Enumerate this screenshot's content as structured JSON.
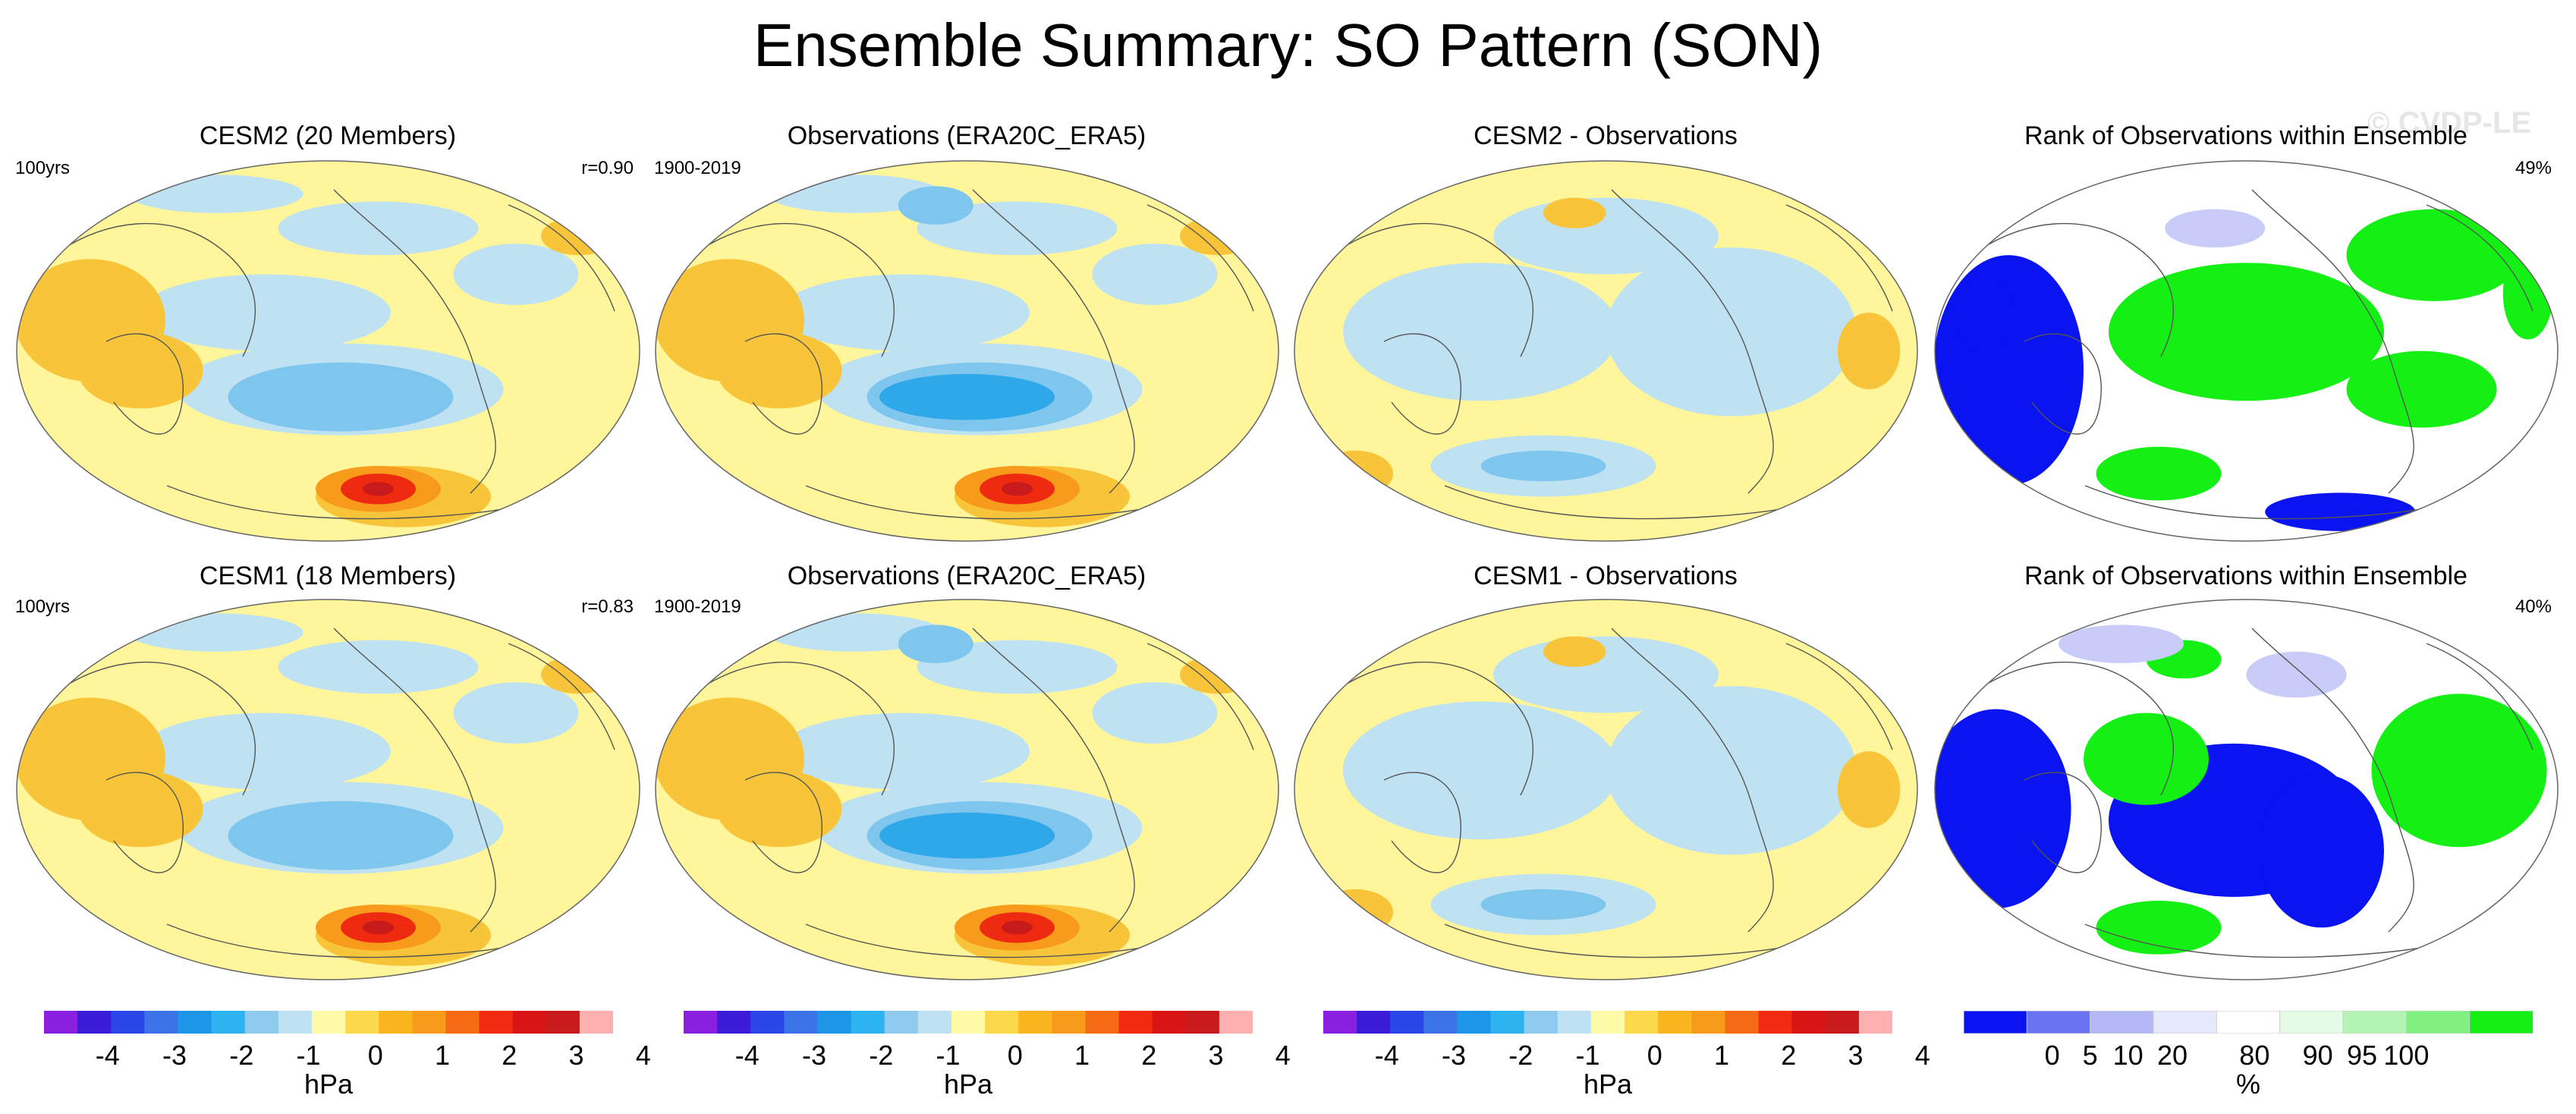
{
  "figure": {
    "title": "Ensemble Summary: SO Pattern (SON)",
    "watermark": "© CVDP-LE"
  },
  "panels": [
    {
      "title": "CESM2 (20 Members)",
      "left_note": "100yrs",
      "right_note": "r=0.90",
      "kind": "pattern"
    },
    {
      "title": "Observations (ERA20C_ERA5)",
      "left_note": "1900-2019",
      "right_note": "",
      "kind": "pattern"
    },
    {
      "title": "CESM2 - Observations",
      "left_note": "",
      "right_note": "",
      "kind": "difference"
    },
    {
      "title": "Rank of Observations within Ensemble",
      "left_note": "",
      "right_note": "49%",
      "kind": "rank"
    },
    {
      "title": "CESM1 (18 Members)",
      "left_note": "100yrs",
      "right_note": "r=0.83",
      "kind": "pattern"
    },
    {
      "title": "Observations (ERA20C_ERA5)",
      "left_note": "1900-2019",
      "right_note": "",
      "kind": "pattern"
    },
    {
      "title": "CESM1 - Observations",
      "left_note": "",
      "right_note": "",
      "kind": "difference"
    },
    {
      "title": "Rank of Observations within Ensemble",
      "left_note": "",
      "right_note": "40%",
      "kind": "rank"
    }
  ],
  "colorbars": {
    "hpa": {
      "unit": "hPa",
      "tick_labels": [
        "-4",
        "-3",
        "-2",
        "-1",
        "0",
        "1",
        "2",
        "3",
        "4"
      ],
      "colors": [
        "#8b1fe0",
        "#3a1cd8",
        "#2a46e6",
        "#3b74e6",
        "#1e96e8",
        "#2db4f0",
        "#8ecbee",
        "#bfe2f2",
        "#fffaa8",
        "#fcd94a",
        "#fbb51e",
        "#f89a1a",
        "#f56a14",
        "#f22a10",
        "#d91414",
        "#c81a1a",
        "#ffb0b0"
      ]
    },
    "rank": {
      "unit": "%",
      "tick_labels": [
        "0",
        "5",
        "10",
        "20",
        "80",
        "90",
        "95",
        "100"
      ],
      "colors": [
        "#0a14f0",
        "#6a74f0",
        "#b4b8f4",
        "#e6e8fb",
        "#ffffff",
        "#e4fbe4",
        "#b4f4b4",
        "#80f080",
        "#14f014"
      ]
    }
  },
  "colors": {
    "neutral_yellow": "#fff59a",
    "light_blue": "#bfe2f2",
    "medium_blue": "#7fc6ee",
    "deep_blue": "#2fa8ea",
    "orange": "#f8c53a",
    "red": "#ee2a10",
    "rank_blue": "#0a14f0",
    "rank_green": "#14f014",
    "rank_lavender": "#c8ccf6",
    "rank_lightgreen": "#c8f8c8"
  }
}
